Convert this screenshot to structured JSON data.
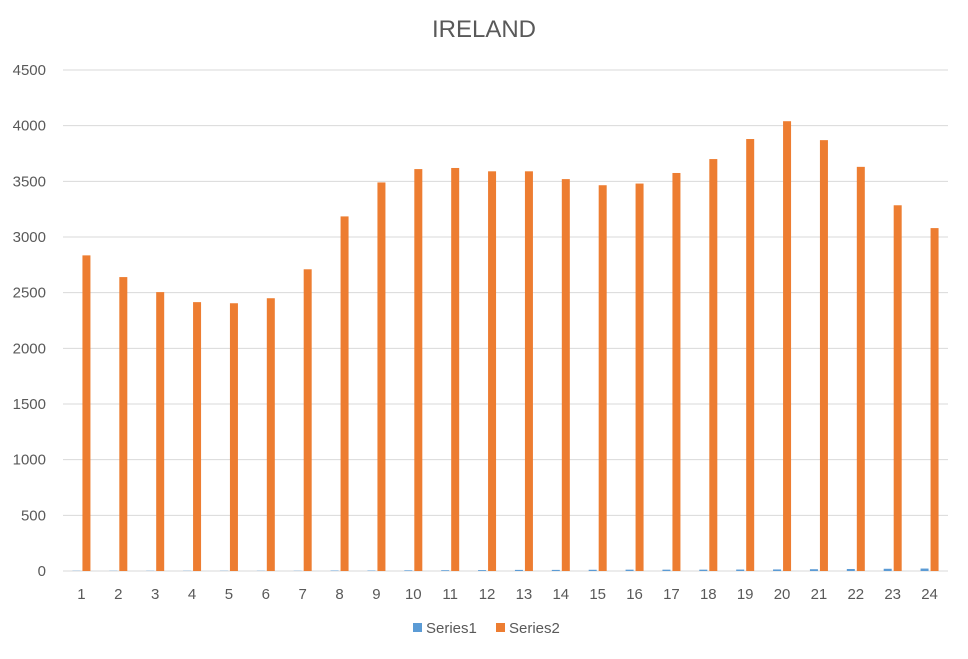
{
  "chart_data": {
    "type": "bar",
    "title": "IRELAND",
    "xlabel": "",
    "ylabel": "",
    "ylim": [
      0,
      4500
    ],
    "yticks": [
      0,
      500,
      1000,
      1500,
      2000,
      2500,
      3000,
      3500,
      4000,
      4500
    ],
    "grid": true,
    "legend_position": "bottom",
    "categories": [
      "1",
      "2",
      "3",
      "4",
      "5",
      "6",
      "7",
      "8",
      "9",
      "10",
      "11",
      "12",
      "13",
      "14",
      "15",
      "16",
      "17",
      "18",
      "19",
      "20",
      "21",
      "22",
      "23",
      "24"
    ],
    "series": [
      {
        "name": "Series1",
        "color": "#5b9bd5",
        "values": [
          2,
          2,
          2,
          2,
          2,
          2,
          2,
          4,
          4,
          6,
          7,
          8,
          10,
          10,
          11,
          12,
          12,
          12,
          13,
          14,
          16,
          18,
          20,
          22
        ]
      },
      {
        "name": "Series2",
        "color": "#ed7d31",
        "values": [
          2835,
          2640,
          2505,
          2415,
          2405,
          2450,
          2710,
          3185,
          3490,
          3610,
          3620,
          3590,
          3590,
          3520,
          3465,
          3480,
          3575,
          3700,
          3880,
          4040,
          3870,
          3630,
          3285,
          3080
        ]
      }
    ]
  }
}
